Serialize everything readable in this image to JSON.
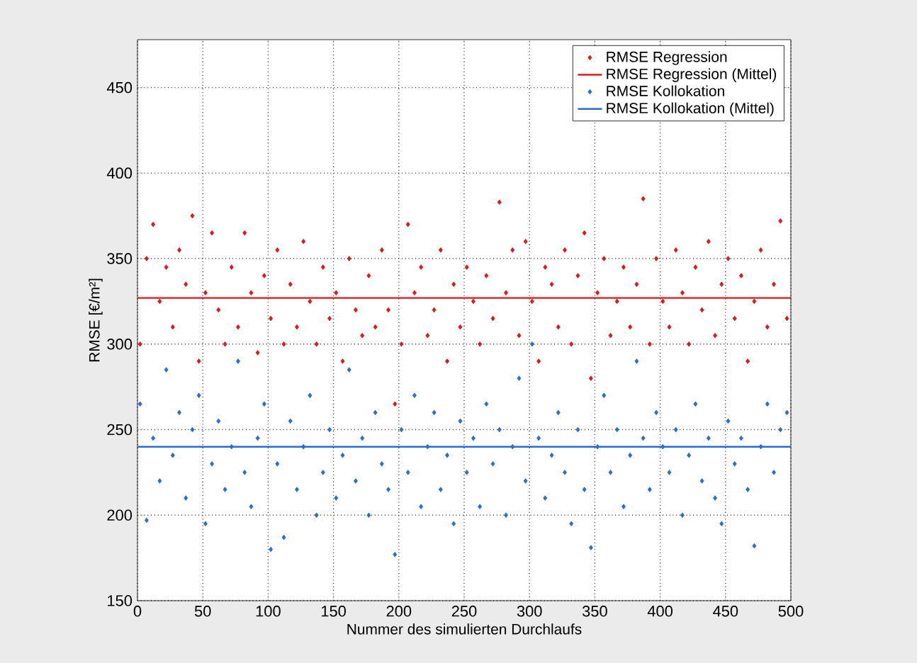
{
  "chart_data": {
    "type": "scatter",
    "xlabel": "Nummer des simulierten Durchlaufs",
    "ylabel": "RMSE [€/m²]",
    "xlim": [
      0,
      500
    ],
    "ylim": [
      150,
      478
    ],
    "xticks": [
      0,
      50,
      100,
      150,
      200,
      250,
      300,
      350,
      400,
      450,
      500
    ],
    "yticks": [
      150,
      200,
      250,
      300,
      350,
      400,
      450
    ],
    "grid": true,
    "legend": "top right",
    "series": [
      {
        "name": "RMSE Regression",
        "marker": "diamond",
        "color": "#e0141e",
        "x": [
          2,
          7,
          12,
          17,
          22,
          27,
          32,
          37,
          42,
          47,
          52,
          57,
          62,
          67,
          72,
          77,
          82,
          87,
          92,
          97,
          102,
          107,
          112,
          117,
          122,
          127,
          132,
          137,
          142,
          147,
          152,
          157,
          162,
          167,
          172,
          177,
          182,
          187,
          192,
          197,
          202,
          207,
          212,
          217,
          222,
          227,
          232,
          237,
          242,
          247,
          252,
          257,
          262,
          267,
          272,
          277,
          282,
          287,
          292,
          297,
          302,
          307,
          312,
          317,
          322,
          327,
          332,
          337,
          342,
          347,
          352,
          357,
          362,
          367,
          372,
          377,
          382,
          387,
          392,
          397,
          402,
          407,
          412,
          417,
          422,
          427,
          432,
          437,
          442,
          447,
          452,
          457,
          462,
          467,
          472,
          477,
          482,
          487,
          492,
          497
        ],
        "values": [
          300,
          350,
          370,
          325,
          345,
          310,
          355,
          335,
          375,
          290,
          330,
          365,
          320,
          300,
          345,
          310,
          365,
          330,
          295,
          340,
          315,
          355,
          300,
          335,
          310,
          360,
          325,
          300,
          345,
          315,
          330,
          290,
          350,
          320,
          305,
          340,
          310,
          355,
          320,
          265,
          300,
          370,
          330,
          345,
          305,
          320,
          355,
          290,
          335,
          310,
          345,
          325,
          300,
          340,
          315,
          383,
          330,
          355,
          305,
          360,
          325,
          290,
          345,
          335,
          310,
          355,
          300,
          340,
          365,
          280,
          330,
          350,
          305,
          325,
          345,
          310,
          335,
          385,
          300,
          350,
          325,
          310,
          355,
          330,
          300,
          345,
          320,
          360,
          305,
          335,
          350,
          315,
          340,
          290,
          325,
          355,
          310,
          335,
          372,
          315
        ]
      },
      {
        "name": "RMSE Regression (Mittel)",
        "type": "line",
        "marker": "none",
        "line_style": "solid",
        "color": "#e0141e",
        "x": [
          0,
          500
        ],
        "values": [
          327,
          327
        ]
      },
      {
        "name": "RMSE Kollokation",
        "marker": "diamond",
        "color": "#2a6ccf",
        "x": [
          2,
          7,
          12,
          17,
          22,
          27,
          32,
          37,
          42,
          47,
          52,
          57,
          62,
          67,
          72,
          77,
          82,
          87,
          92,
          97,
          102,
          107,
          112,
          117,
          122,
          127,
          132,
          137,
          142,
          147,
          152,
          157,
          162,
          167,
          172,
          177,
          182,
          187,
          192,
          197,
          202,
          207,
          212,
          217,
          222,
          227,
          232,
          237,
          242,
          247,
          252,
          257,
          262,
          267,
          272,
          277,
          282,
          287,
          292,
          297,
          302,
          307,
          312,
          317,
          322,
          327,
          332,
          337,
          342,
          347,
          352,
          357,
          362,
          367,
          372,
          377,
          382,
          387,
          392,
          397,
          402,
          407,
          412,
          417,
          422,
          427,
          432,
          437,
          442,
          447,
          452,
          457,
          462,
          467,
          472,
          477,
          482,
          487,
          492,
          497
        ],
        "values": [
          265,
          197,
          245,
          220,
          285,
          235,
          260,
          210,
          250,
          270,
          195,
          230,
          255,
          215,
          240,
          290,
          225,
          205,
          245,
          265,
          180,
          230,
          187,
          255,
          215,
          240,
          270,
          200,
          225,
          250,
          210,
          235,
          285,
          220,
          245,
          200,
          260,
          230,
          215,
          177,
          250,
          225,
          270,
          205,
          240,
          260,
          215,
          235,
          195,
          255,
          225,
          245,
          205,
          265,
          230,
          250,
          200,
          240,
          280,
          220,
          300,
          245,
          210,
          235,
          260,
          225,
          195,
          250,
          215,
          181,
          240,
          270,
          225,
          250,
          205,
          235,
          290,
          245,
          215,
          260,
          240,
          225,
          250,
          200,
          235,
          265,
          220,
          245,
          210,
          195,
          255,
          230,
          245,
          215,
          182,
          240,
          265,
          225,
          250,
          260
        ]
      },
      {
        "name": "RMSE Kollokation (Mittel)",
        "type": "line",
        "marker": "none",
        "line_style": "solid",
        "color": "#2a6ccf",
        "x": [
          0,
          500
        ],
        "values": [
          240,
          240
        ]
      }
    ]
  }
}
